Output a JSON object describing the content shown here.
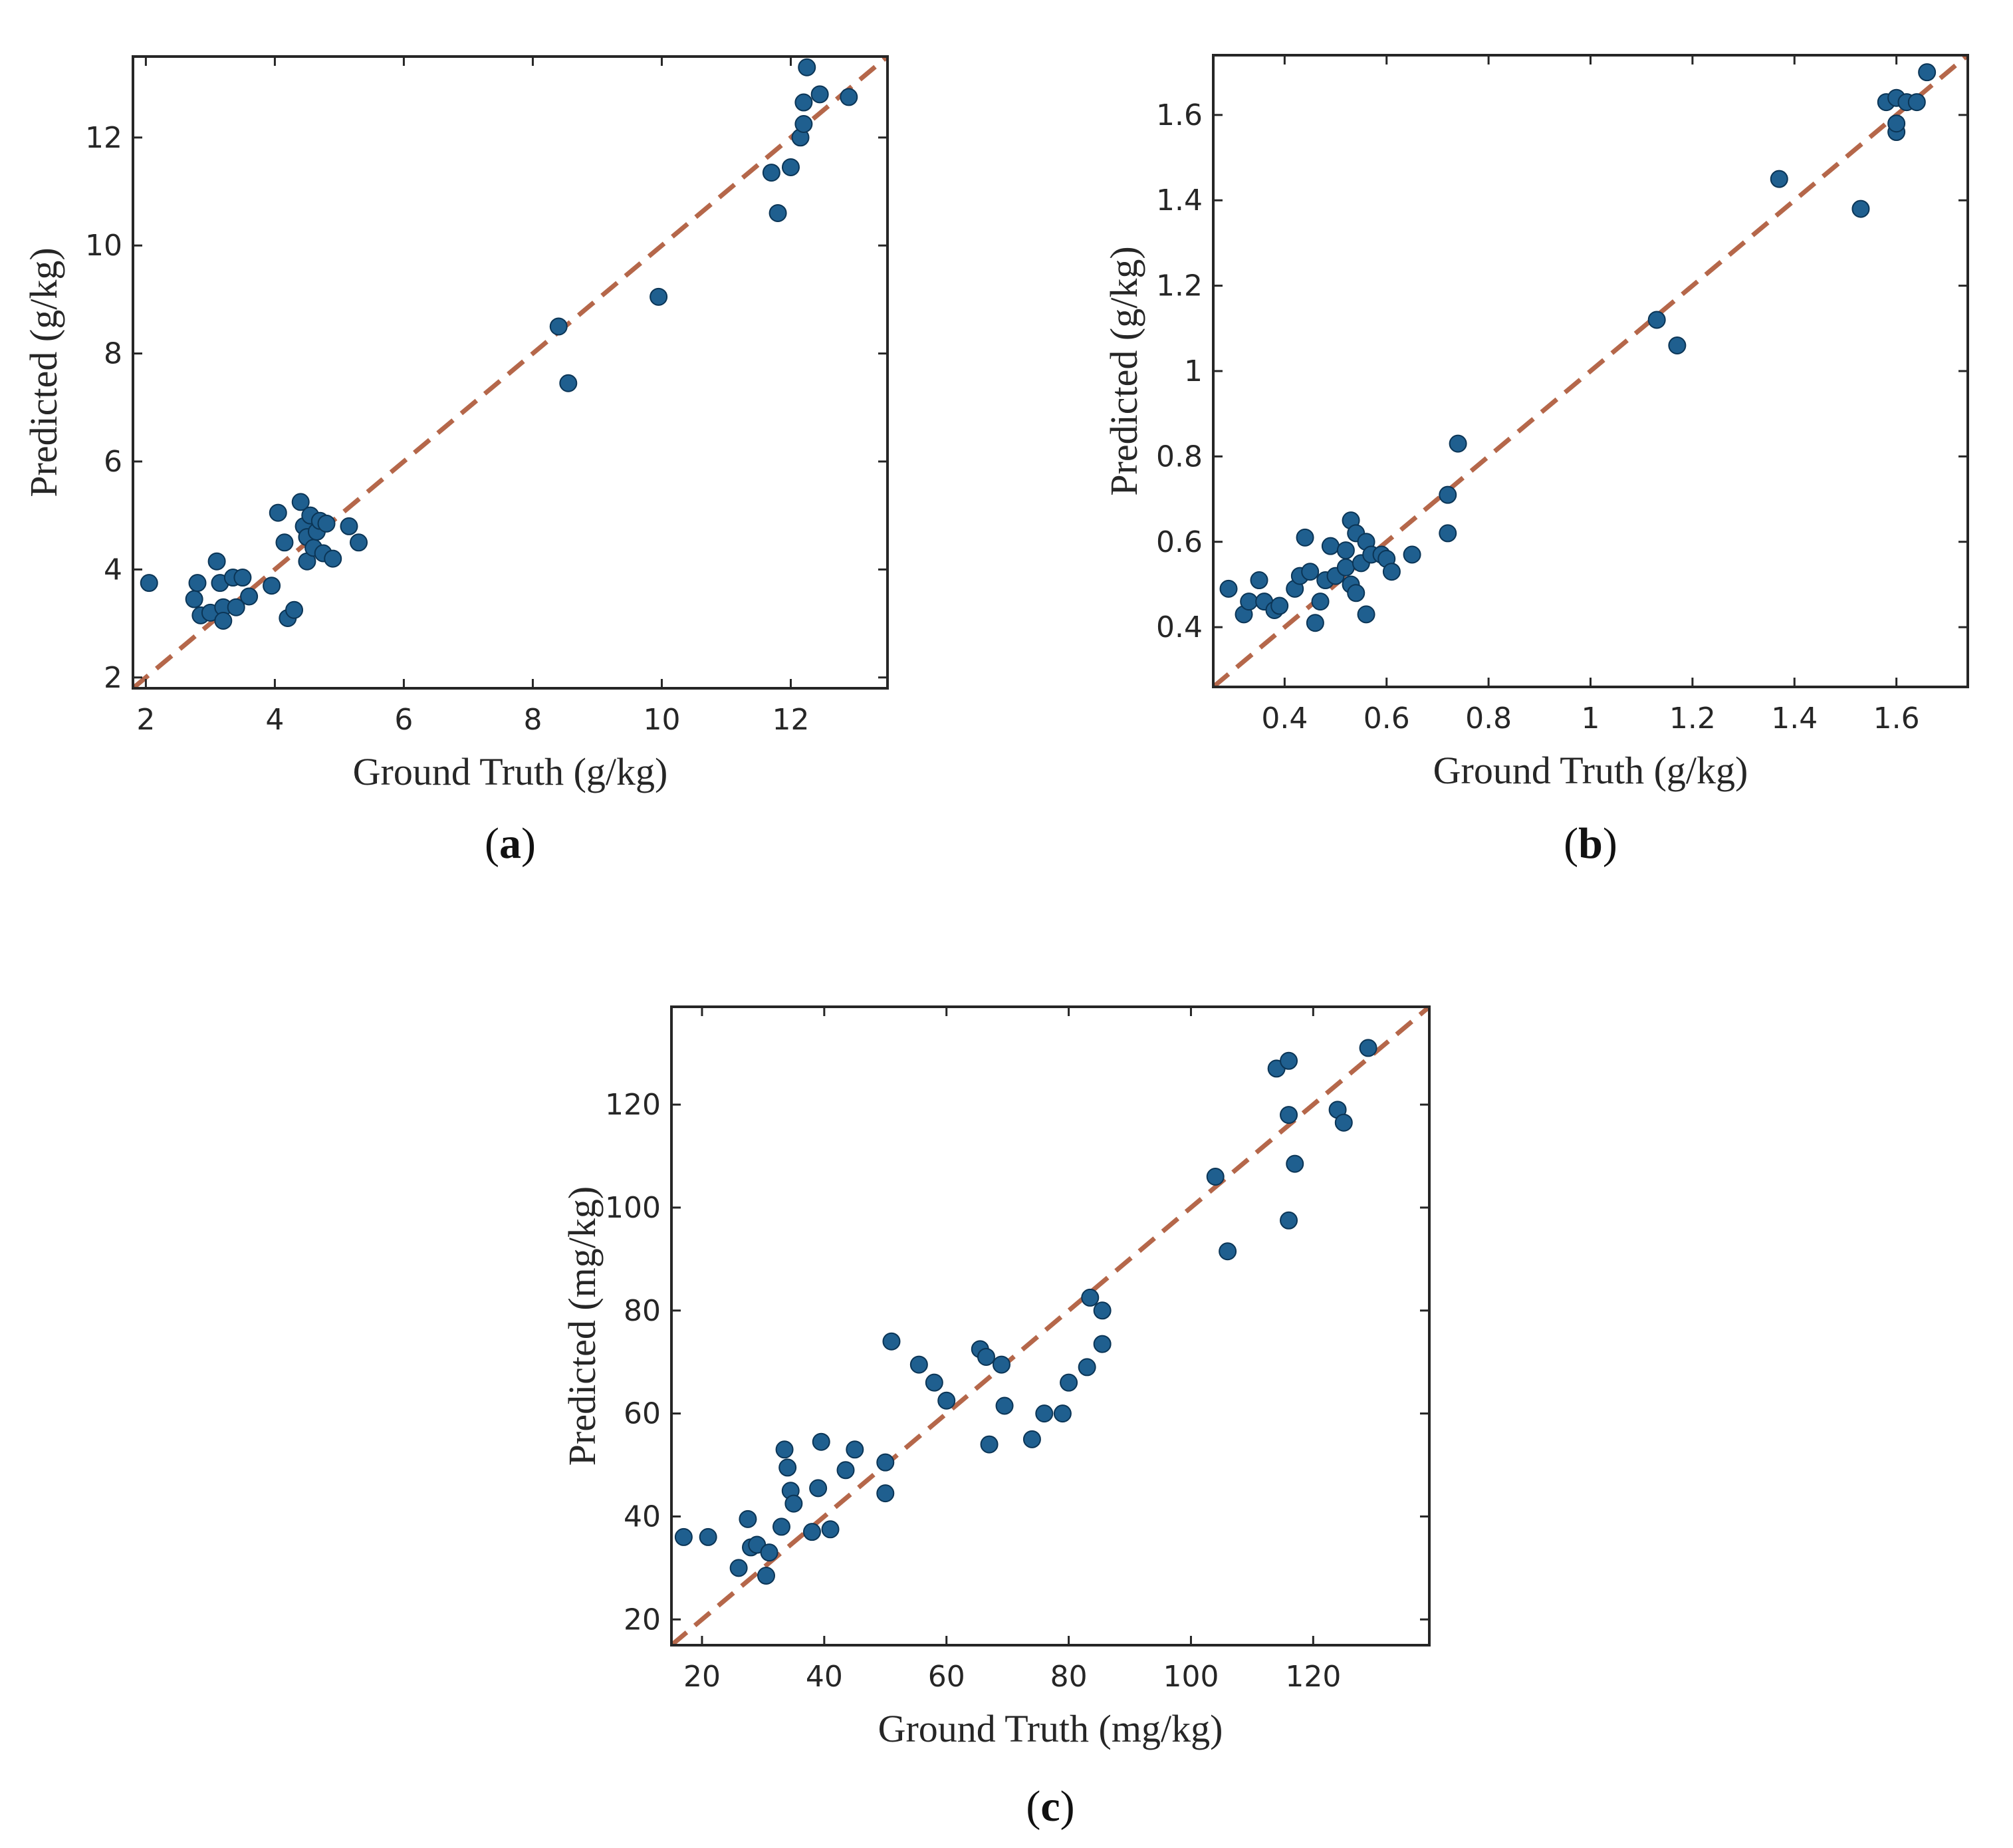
{
  "colors": {
    "marker": "#1f5f8f",
    "reference_line": "#b5674a"
  },
  "chart_data": [
    {
      "type": "scatter",
      "panel_label": "a",
      "xlabel": "Ground Truth (g/kg)",
      "ylabel": "Predicted (g/kg)",
      "xlim": [
        1.8,
        13.5
      ],
      "ylim": [
        1.8,
        13.5
      ],
      "xticks": [
        2,
        4,
        6,
        8,
        10,
        12
      ],
      "yticks": [
        2,
        4,
        6,
        8,
        10,
        12
      ],
      "reference_line": "y = x",
      "points": [
        [
          2.05,
          3.75
        ],
        [
          2.75,
          3.45
        ],
        [
          2.8,
          3.75
        ],
        [
          2.85,
          3.15
        ],
        [
          3.0,
          3.2
        ],
        [
          3.1,
          4.15
        ],
        [
          3.15,
          3.75
        ],
        [
          3.2,
          3.3
        ],
        [
          3.2,
          3.05
        ],
        [
          3.35,
          3.85
        ],
        [
          3.4,
          3.3
        ],
        [
          3.5,
          3.85
        ],
        [
          3.6,
          3.5
        ],
        [
          3.95,
          3.7
        ],
        [
          4.05,
          5.05
        ],
        [
          4.15,
          4.5
        ],
        [
          4.2,
          3.1
        ],
        [
          4.3,
          3.25
        ],
        [
          4.4,
          5.25
        ],
        [
          4.45,
          4.8
        ],
        [
          4.5,
          4.15
        ],
        [
          4.5,
          4.6
        ],
        [
          4.55,
          5.0
        ],
        [
          4.6,
          4.4
        ],
        [
          4.65,
          4.7
        ],
        [
          4.7,
          4.9
        ],
        [
          4.75,
          4.3
        ],
        [
          4.8,
          4.85
        ],
        [
          4.9,
          4.2
        ],
        [
          5.15,
          4.8
        ],
        [
          5.3,
          4.5
        ],
        [
          8.4,
          8.5
        ],
        [
          8.55,
          7.45
        ],
        [
          9.95,
          9.05
        ],
        [
          11.7,
          11.35
        ],
        [
          11.8,
          10.6
        ],
        [
          12.0,
          11.45
        ],
        [
          12.15,
          12.0
        ],
        [
          12.2,
          12.25
        ],
        [
          12.2,
          12.65
        ],
        [
          12.25,
          13.3
        ],
        [
          12.45,
          12.8
        ],
        [
          12.9,
          12.75
        ]
      ]
    },
    {
      "type": "scatter",
      "panel_label": "b",
      "xlabel": "Ground Truth (g/kg)",
      "ylabel": "Predicted (g/kg)",
      "xlim": [
        0.26,
        1.74
      ],
      "ylim": [
        0.26,
        1.74
      ],
      "xticks": [
        0.4,
        0.6,
        0.8,
        1,
        1.2,
        1.4,
        1.6
      ],
      "xtick_labels": [
        "0.4",
        "0.6",
        "0.8",
        "1",
        "1.2",
        "1.4",
        "1.6"
      ],
      "yticks": [
        0.4,
        0.6,
        0.8,
        1,
        1.2,
        1.4,
        1.6
      ],
      "ytick_labels": [
        "0.4",
        "0.6",
        "0.8",
        "1",
        "1.2",
        "1.4",
        "1.6"
      ],
      "reference_line": "y = x",
      "points": [
        [
          0.29,
          0.49
        ],
        [
          0.32,
          0.43
        ],
        [
          0.33,
          0.46
        ],
        [
          0.35,
          0.51
        ],
        [
          0.36,
          0.46
        ],
        [
          0.38,
          0.44
        ],
        [
          0.39,
          0.45
        ],
        [
          0.42,
          0.49
        ],
        [
          0.43,
          0.52
        ],
        [
          0.44,
          0.61
        ],
        [
          0.45,
          0.53
        ],
        [
          0.46,
          0.41
        ],
        [
          0.47,
          0.46
        ],
        [
          0.48,
          0.51
        ],
        [
          0.49,
          0.59
        ],
        [
          0.5,
          0.52
        ],
        [
          0.52,
          0.54
        ],
        [
          0.52,
          0.58
        ],
        [
          0.53,
          0.65
        ],
        [
          0.53,
          0.5
        ],
        [
          0.54,
          0.62
        ],
        [
          0.54,
          0.48
        ],
        [
          0.55,
          0.55
        ],
        [
          0.56,
          0.6
        ],
        [
          0.56,
          0.43
        ],
        [
          0.57,
          0.57
        ],
        [
          0.59,
          0.57
        ],
        [
          0.6,
          0.56
        ],
        [
          0.61,
          0.53
        ],
        [
          0.65,
          0.57
        ],
        [
          0.72,
          0.71
        ],
        [
          0.72,
          0.62
        ],
        [
          0.74,
          0.83
        ],
        [
          1.13,
          1.12
        ],
        [
          1.17,
          1.06
        ],
        [
          1.37,
          1.45
        ],
        [
          1.53,
          1.38
        ],
        [
          1.58,
          1.63
        ],
        [
          1.6,
          1.56
        ],
        [
          1.6,
          1.58
        ],
        [
          1.6,
          1.64
        ],
        [
          1.62,
          1.63
        ],
        [
          1.64,
          1.63
        ],
        [
          1.66,
          1.7
        ]
      ]
    },
    {
      "type": "scatter",
      "panel_label": "c",
      "xlabel": "Ground Truth (mg/kg)",
      "ylabel": "Predicted (mg/kg)",
      "xlim": [
        15,
        139
      ],
      "ylim": [
        15,
        139
      ],
      "xticks": [
        20,
        40,
        60,
        80,
        100,
        120
      ],
      "yticks": [
        20,
        40,
        60,
        80,
        100,
        120
      ],
      "reference_line": "y = x",
      "points": [
        [
          17,
          36
        ],
        [
          21,
          36
        ],
        [
          26,
          30
        ],
        [
          27.5,
          39.5
        ],
        [
          28,
          34
        ],
        [
          29,
          34.5
        ],
        [
          30.5,
          28.5
        ],
        [
          31,
          33
        ],
        [
          33,
          38
        ],
        [
          33.5,
          53
        ],
        [
          34,
          49.5
        ],
        [
          34.5,
          45
        ],
        [
          35,
          42.5
        ],
        [
          38,
          37
        ],
        [
          39,
          45.5
        ],
        [
          39.5,
          54.5
        ],
        [
          41,
          37.5
        ],
        [
          43.5,
          49
        ],
        [
          45,
          53
        ],
        [
          50,
          50.5
        ],
        [
          50,
          44.5
        ],
        [
          51,
          74
        ],
        [
          55.5,
          69.5
        ],
        [
          58,
          66
        ],
        [
          60,
          62.5
        ],
        [
          65.5,
          72.5
        ],
        [
          66.5,
          71
        ],
        [
          67,
          54
        ],
        [
          69,
          69.5
        ],
        [
          69.5,
          61.5
        ],
        [
          74,
          55
        ],
        [
          76,
          60
        ],
        [
          79,
          60
        ],
        [
          80,
          66
        ],
        [
          83,
          69
        ],
        [
          83.5,
          82.5
        ],
        [
          85.5,
          73.5
        ],
        [
          85.5,
          80
        ],
        [
          104,
          106
        ],
        [
          106,
          91.5
        ],
        [
          114,
          127
        ],
        [
          116,
          128.5
        ],
        [
          116,
          118
        ],
        [
          116,
          97.5
        ],
        [
          117,
          108.5
        ],
        [
          124,
          119
        ],
        [
          125,
          116.5
        ],
        [
          129,
          131
        ]
      ]
    }
  ]
}
